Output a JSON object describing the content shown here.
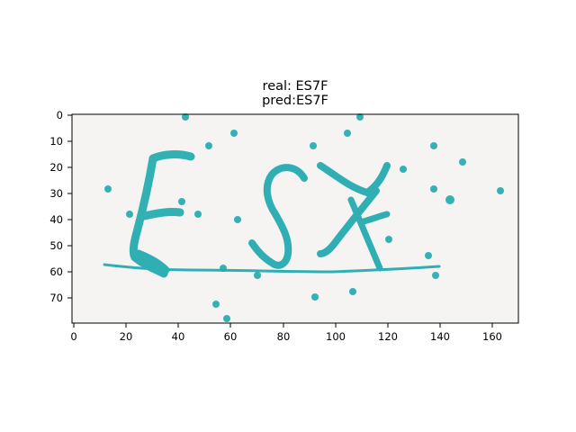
{
  "figure": {
    "title_real": "real: ES7F",
    "title_pred": "pred:ES7F"
  },
  "image": {
    "background_color": "#f5f4f2",
    "ink_color": "#1faaaf",
    "x_range": [
      0,
      170
    ],
    "y_range": [
      80,
      0
    ],
    "x_ticks": [
      "0",
      "20",
      "40",
      "60",
      "80",
      "100",
      "120",
      "140",
      "160"
    ],
    "y_ticks": [
      "0",
      "10",
      "20",
      "30",
      "40",
      "50",
      "60",
      "70"
    ],
    "glyphs_description": "Captcha with the characters E S 7 F drawn in teal strokes with scattered cross-shaped noise dots and an underline"
  }
}
